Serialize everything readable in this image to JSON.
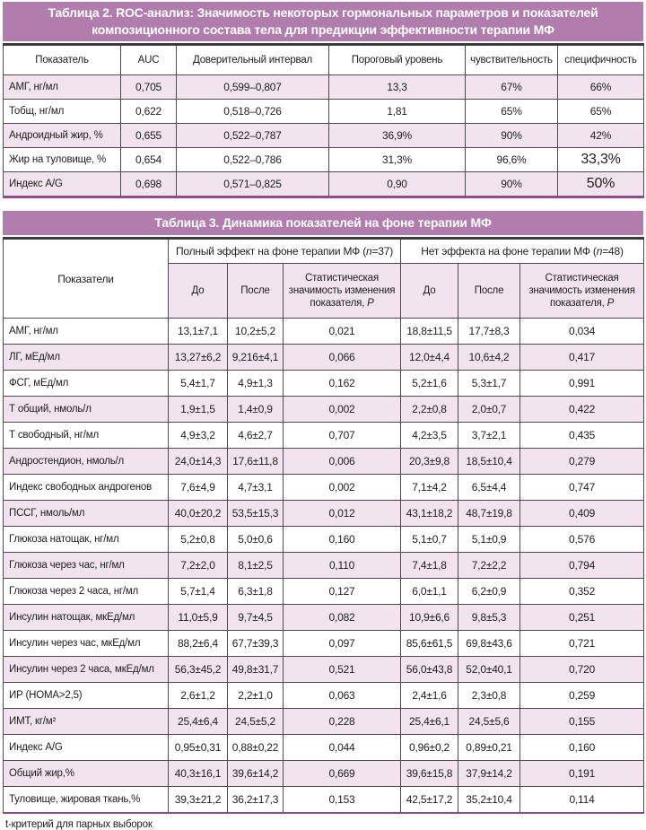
{
  "colors": {
    "title_bar_purple": "#b17dac",
    "row_pink": "#f1e4ef",
    "rule_purple": "#8f4c89",
    "rule_dark": "#3c3c3c"
  },
  "table2": {
    "title_line1": "Таблица 2. ROC-анализ: Значимость некоторых гормональных параметров и показателей",
    "title_line2": "композиционного состава тела для предикции эффективности терапии МФ",
    "headers": [
      "Показатель",
      "AUC",
      "Доверительный интервал",
      "Пороговый уровень",
      "чувствительность",
      "специфичность"
    ],
    "rows": [
      [
        "АМГ, нг/мл",
        "0,705",
        "0,599–0,807",
        "13,3",
        "67%",
        "66%"
      ],
      [
        "Тобщ, нг/мл",
        "0,622",
        "0,518–0,726",
        "1,81",
        "65%",
        "65%"
      ],
      [
        "Андроидный жир, %",
        "0,655",
        "0,522–0,787",
        "36,9%",
        "90%",
        "42%"
      ],
      [
        "Жир на туловище, %",
        "0,654",
        "0,522–0,786",
        "31,3%",
        "96,6%",
        "33,3%"
      ],
      [
        "Индекс A/G",
        "0,698",
        "0,571–0,825",
        "0,90",
        "90%",
        "50%"
      ]
    ]
  },
  "table3": {
    "title": "Таблица 3. Динамика показателей на фоне терапии МФ",
    "indicators_header": "Показатели",
    "groups": [
      {
        "prefix": "Полный эффект на фоне терапии МФ (",
        "n": "n",
        "suffix": "=37)"
      },
      {
        "prefix": "Нет эффекта на фоне терапии МФ (",
        "n": "n",
        "suffix": "=48)"
      }
    ],
    "sub": {
      "do": "До",
      "posle": "После",
      "stat_prefix": "Статистическая значимость изменения показателя, ",
      "stat_italic": "P"
    },
    "rows": [
      [
        "АМГ, нг/мл",
        "13,1±7,1",
        "10,2±5,2",
        "0,021",
        "18,8±11,5",
        "17,7±8,3",
        "0,034"
      ],
      [
        "ЛГ, мЕд/мл",
        "13,27±6,2",
        "9,216±4,1",
        "0,066",
        "12,0±4,4",
        "10,6±4,2",
        "0,417"
      ],
      [
        "ФСГ, мЕд/мл",
        "5,4±1,7",
        "4,9±1,3",
        "0,162",
        "5,2±1,6",
        "5,3±1,7",
        "0,991"
      ],
      [
        "Т общий, нмоль/л",
        "1,9±1,5",
        "1,4±0,9",
        "0,002",
        "2,2±0,8",
        "2,0±0,7",
        "0,422"
      ],
      [
        "Т свободный, нг/мл",
        "4,9±3,2",
        "4,6±2,7",
        "0,707",
        "4,2±3,5",
        "3,7±2,1",
        "0,435"
      ],
      [
        "Андростендион, нмоль/л",
        "24,0±14,3",
        "17,6±11,8",
        "0,006",
        "20,3±9,8",
        "18,5±10,4",
        "0,279"
      ],
      [
        "Индекс свободных андрогенов",
        "7,6±4,9",
        "4,7±3,1",
        "0,002",
        "7,1±4,2",
        "6,5±4,4",
        "0,747"
      ],
      [
        "ПССГ, нмоль/мл",
        "40,0±20,2",
        "53,5±15,3",
        "0,012",
        "43,1±18,2",
        "48,7±19,8",
        "0,409"
      ],
      [
        "Глюкоза натощак, нг/мл",
        "5,2±0,8",
        "5,0±0,6",
        "0,160",
        "5,1±0,7",
        "5,1±0,9",
        "0,576"
      ],
      [
        "Глюкоза через час, нг/мл",
        "7,2±2,0",
        "8,1±2,5",
        "0,110",
        "7,4±1,8",
        "7,2±2,2",
        "0,794"
      ],
      [
        "Глюкоза через 2 часа, нг/мл",
        "5,7±1,4",
        "6,3±1,8",
        "0,127",
        "6,0±1,1",
        "6,2±0,9",
        "0,352"
      ],
      [
        "Инсулин натощак, мкЕд/мл",
        "11,0±5,9",
        "9,7±4,5",
        "0,082",
        "10,9±6,6",
        "9,8±5,3",
        "0,251"
      ],
      [
        "Инсулин через час, мкЕд/мл",
        "88,2±6,4",
        "67,7±39,3",
        "0,097",
        "85,6±61,5",
        "69,8±43,6",
        "0,721"
      ],
      [
        "Инсулин через 2 часа, мкЕд/мл",
        "56,3±45,2",
        "49,8±31,7",
        "0,521",
        "56,0±43,8",
        "52,0±40,1",
        "0,720"
      ],
      [
        "ИР (НОМА>2,5)",
        "2,6±1,2",
        "2,2±1,0",
        "0,063",
        "2,4±1,6",
        "2,3±0,8",
        "0,259"
      ],
      [
        "ИМТ, кг/м²",
        "25,4±6,4",
        "24,5±5,2",
        "0,228",
        "25,4±6,1",
        "24,5±5,6",
        "0,155"
      ],
      [
        "Индекс A/G",
        "0,95±0,31",
        "0,88±0,22",
        "0,044",
        "0,96±0,2",
        "0,89±0,21",
        "0,160"
      ],
      [
        "Общий жир,%",
        "40,3±16,1",
        "39,6±14,2",
        "0,669",
        "39,6±15,8",
        "37,9±14,2",
        "0,191"
      ],
      [
        "Туловище, жировая ткань,%",
        "39,3±21,2",
        "36,2±17,3",
        "0,153",
        "42,5±17,2",
        "35,2±10,4",
        "0,114"
      ]
    ],
    "footnote": "t-критерий для парных выборок"
  }
}
